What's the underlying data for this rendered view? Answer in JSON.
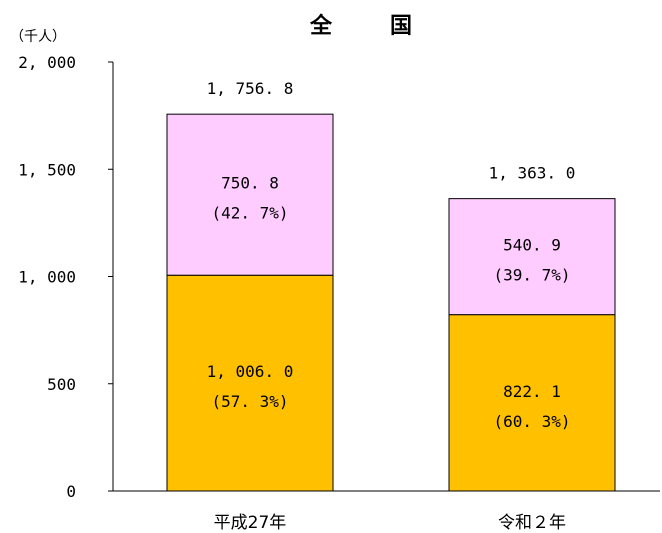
{
  "chart_data": {
    "type": "bar",
    "stacked": true,
    "title": "全　国",
    "unit_label": "（千人）",
    "categories": [
      "平成27年",
      "令和２年"
    ],
    "ylim": [
      0,
      2000
    ],
    "yticks": [
      0,
      500,
      1000,
      1500,
      2000
    ],
    "ytick_labels": [
      "0",
      "500",
      "1, 000",
      "1, 500",
      "2, 000"
    ],
    "series": [
      {
        "values": [
          1006.0,
          822.1
        ],
        "color": "#FFC000",
        "value_labels": [
          "1, 006. 0",
          "822. 1"
        ],
        "percent_labels": [
          "(57. 3%)",
          "(60. 3%)"
        ]
      },
      {
        "values": [
          750.8,
          540.9
        ],
        "color": "#FFCCFF",
        "value_labels": [
          "750. 8",
          "540. 9"
        ],
        "percent_labels": [
          "(42. 7%)",
          "(39. 7%)"
        ]
      }
    ],
    "totals": [
      1756.8,
      1363.0
    ],
    "total_labels": [
      "1, 756. 8",
      "1, 363. 0"
    ],
    "grid": false,
    "legend": "none"
  }
}
